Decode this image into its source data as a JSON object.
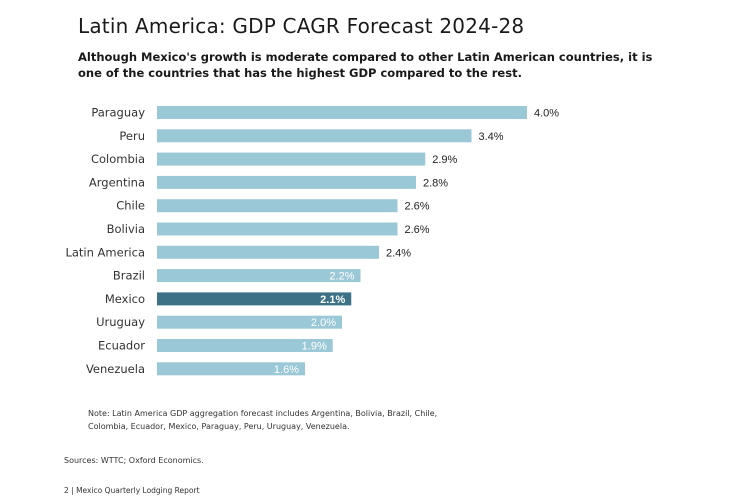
{
  "title": "Latin America: GDP CAGR Forecast 2024-28",
  "subtitle": "Although Mexico's growth is moderate compared to other Latin American countries, it is one of the countries that has the highest GDP compared to the rest.",
  "note": "Note: Latin America GDP aggregation forecast includes Argentina, Bolivia, Brazil, Chile, Colombia, Ecuador, Mexico, Paraguay, Peru, Uruguay, Venezuela.",
  "sources": "Sources: WTTC; Oxford Economics.",
  "footer": "2 | Mexico Quarterly Lodging Report",
  "colors": {
    "bar": "#9ac8d6",
    "highlight": "#3d7185",
    "label_dark": "#222222",
    "label_light": "#ffffff"
  },
  "chart_data": {
    "type": "bar",
    "orientation": "horizontal",
    "categories": [
      "Paraguay",
      "Peru",
      "Colombia",
      "Argentina",
      "Chile",
      "Bolivia",
      "Latin America",
      "Brazil",
      "Mexico",
      "Uruguay",
      "Ecuador",
      "Venezuela"
    ],
    "values": [
      4.0,
      3.4,
      2.9,
      2.8,
      2.6,
      2.6,
      2.4,
      2.2,
      2.1,
      2.0,
      1.9,
      1.6
    ],
    "data_labels": [
      "4.0%",
      "3.4%",
      "2.9%",
      "2.8%",
      "2.6%",
      "2.6%",
      "2.4%",
      "2.2%",
      "2.1%",
      "2.0%",
      "1.9%",
      "1.6%"
    ],
    "highlight": "Mexico",
    "xlim": [
      0,
      4.0
    ],
    "grid": false,
    "legend": "none"
  }
}
